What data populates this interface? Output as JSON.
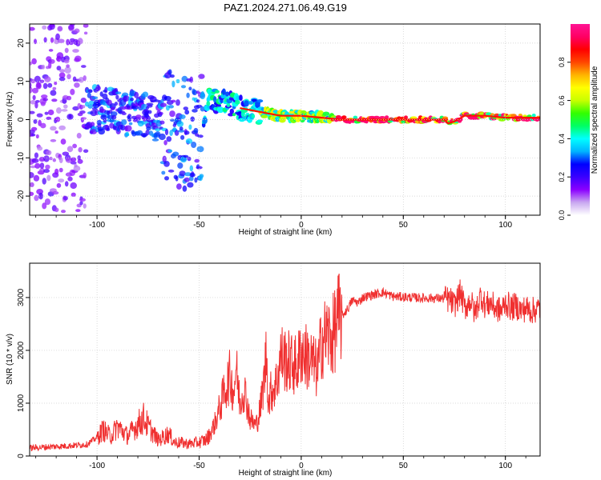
{
  "figure": {
    "title": "PAZ1.2024.271.06.49.G19"
  },
  "colorbar": {
    "label": "Normalized spectral amplitude",
    "ticks": [
      "0.0",
      "0.2",
      "0.4",
      "0.6",
      "0.8"
    ],
    "range": [
      0,
      1
    ],
    "colors": [
      "#ffffff",
      "#c9a8f0",
      "#8b00ff",
      "#3a00ff",
      "#0000ff",
      "#00b4ff",
      "#00ffff",
      "#00ff64",
      "#32ff00",
      "#c8ff00",
      "#ffff00",
      "#ffb400",
      "#ff4600",
      "#ff0000",
      "#ff0064",
      "#ff1493"
    ]
  },
  "chart_data": [
    {
      "type": "heatmap",
      "title": "PAZ1.2024.271.06.49.G19",
      "xlabel": "Height of straight line (km)",
      "ylabel": "Frequency (Hz)",
      "xlim": [
        -133,
        117
      ],
      "ylim": [
        -25,
        25
      ],
      "xticks": [
        "-100",
        "-50",
        "0",
        "50",
        "100"
      ],
      "yticks": [
        "-20",
        "-10",
        "0",
        "10",
        "20"
      ],
      "grid": true,
      "colorscale": "rainbow, 0 to 1",
      "ridge_frequency": {
        "x": [
          -133,
          -110,
          -100,
          -90,
          -80,
          -70,
          -60,
          -50,
          -45,
          -40,
          -30,
          -20,
          -10,
          0,
          10,
          20,
          30,
          40,
          50,
          60,
          70,
          72,
          75,
          80,
          90,
          100,
          110,
          117
        ],
        "y": [
          0,
          1,
          3,
          2,
          1,
          0,
          -3,
          -5,
          6,
          5,
          3,
          2,
          1,
          1,
          0.5,
          0,
          0,
          0,
          0,
          0,
          0,
          -1,
          -0.5,
          1,
          1,
          0.5,
          0.5,
          0.5
        ]
      }
    },
    {
      "type": "line",
      "xlabel": "Height of straight line (km)",
      "ylabel": "SNR (10 * v/v)",
      "xlim": [
        -133,
        117
      ],
      "ylim": [
        0,
        3650
      ],
      "xticks": [
        "-100",
        "-50",
        "0",
        "50",
        "100"
      ],
      "yticks": [
        "0",
        "1000",
        "2000",
        "3000"
      ],
      "grid": true,
      "color": "#f03030",
      "series": [
        {
          "x": [
            -133,
            -125,
            -115,
            -105,
            -100,
            -97,
            -95,
            -93,
            -90,
            -85,
            -80,
            -77,
            -75,
            -70,
            -65,
            -62,
            -58,
            -55,
            -50,
            -47,
            -45,
            -42,
            -40,
            -37,
            -35,
            -33,
            -32,
            -30,
            -28,
            -27,
            -25,
            -23,
            -22,
            -20,
            -18,
            -17,
            -16,
            -15,
            -12,
            -10,
            -7,
            -5,
            -2,
            0,
            2,
            5,
            8,
            10,
            13,
            15,
            18,
            20,
            23,
            25,
            28,
            30,
            35,
            40,
            45,
            50,
            55,
            60,
            65,
            70,
            73,
            75,
            78,
            80,
            83,
            85,
            88,
            90,
            93,
            95,
            98,
            100,
            103,
            105,
            108,
            110,
            113,
            117
          ],
          "y": [
            150,
            170,
            190,
            220,
            350,
            500,
            420,
            380,
            560,
            380,
            600,
            720,
            560,
            300,
            420,
            260,
            250,
            230,
            260,
            300,
            380,
            650,
            900,
            1300,
            1500,
            1200,
            1700,
            1000,
            1300,
            1100,
            700,
            600,
            600,
            900,
            1500,
            2000,
            1000,
            1200,
            1400,
            1900,
            1800,
            1750,
            1700,
            2000,
            1900,
            1800,
            1600,
            2200,
            2300,
            2200,
            2600,
            2650,
            2800,
            2950,
            2900,
            3000,
            3050,
            3100,
            3020,
            3010,
            3000,
            2990,
            2990,
            2980,
            2950,
            2850,
            3100,
            2800,
            2950,
            2700,
            3050,
            2850,
            2900,
            2800,
            2750,
            2900,
            2800,
            2850,
            2750,
            2800,
            2750,
            2800
          ]
        }
      ]
    }
  ]
}
